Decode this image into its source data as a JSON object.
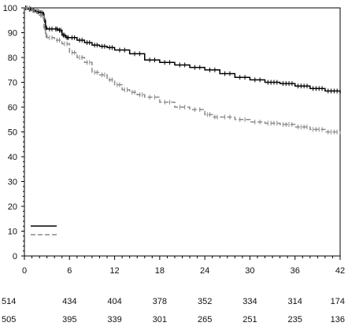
{
  "chart_data": {
    "type": "line",
    "title": "",
    "xlabel": "",
    "ylabel": "",
    "xlim": [
      0,
      42
    ],
    "ylim": [
      0,
      100
    ],
    "x_ticks": [
      0,
      6,
      12,
      18,
      24,
      30,
      36,
      42
    ],
    "y_ticks": [
      0,
      10,
      20,
      30,
      40,
      50,
      60,
      70,
      80,
      90,
      100
    ],
    "grid": false,
    "legend": {
      "placement": "bottom-left",
      "entries": [
        "",
        ""
      ]
    },
    "series": [
      {
        "color": "#000000",
        "dash": "solid",
        "points": [
          [
            0,
            100
          ],
          [
            0.5,
            99.5
          ],
          [
            1,
            99
          ],
          [
            1.5,
            98.5
          ],
          [
            2,
            98
          ],
          [
            2.5,
            97.5
          ],
          [
            2.6,
            95
          ],
          [
            2.8,
            92
          ],
          [
            3,
            91.5
          ],
          [
            4,
            91.5
          ],
          [
            4.5,
            91
          ],
          [
            5,
            89
          ],
          [
            5.5,
            88
          ],
          [
            6,
            88
          ],
          [
            7,
            87
          ],
          [
            8,
            86
          ],
          [
            9,
            85
          ],
          [
            10,
            84.5
          ],
          [
            11,
            84
          ],
          [
            12,
            83
          ],
          [
            14,
            81.5
          ],
          [
            16,
            79
          ],
          [
            18,
            78
          ],
          [
            20,
            77
          ],
          [
            22,
            76
          ],
          [
            24,
            75
          ],
          [
            26,
            73.5
          ],
          [
            28,
            72
          ],
          [
            30,
            71
          ],
          [
            32,
            70
          ],
          [
            34,
            69.5
          ],
          [
            36,
            68.5
          ],
          [
            38,
            67.5
          ],
          [
            40,
            66.5
          ],
          [
            42,
            65.5
          ]
        ]
      },
      {
        "color": "#8a8a8a",
        "dash": "dashed",
        "points": [
          [
            0,
            100
          ],
          [
            1,
            99
          ],
          [
            2,
            97
          ],
          [
            2.5,
            96
          ],
          [
            2.6,
            92
          ],
          [
            2.8,
            89
          ],
          [
            3,
            88
          ],
          [
            4,
            87
          ],
          [
            5,
            85.5
          ],
          [
            6,
            82
          ],
          [
            7,
            80
          ],
          [
            8,
            78
          ],
          [
            9,
            74
          ],
          [
            10,
            73
          ],
          [
            11,
            71
          ],
          [
            12,
            69
          ],
          [
            13,
            67
          ],
          [
            14,
            66
          ],
          [
            15,
            65
          ],
          [
            16,
            64
          ],
          [
            18,
            62
          ],
          [
            20,
            60
          ],
          [
            22,
            59
          ],
          [
            24,
            57
          ],
          [
            25,
            56
          ],
          [
            26,
            56
          ],
          [
            28,
            55
          ],
          [
            30,
            54
          ],
          [
            32,
            53.5
          ],
          [
            34,
            53
          ],
          [
            36,
            52
          ],
          [
            38,
            51
          ],
          [
            40,
            50
          ],
          [
            42,
            49
          ]
        ]
      }
    ],
    "at_risk": [
      {
        "x": [
          0,
          6,
          12,
          18,
          24,
          30,
          36,
          42
        ],
        "values": [
          514,
          434,
          404,
          378,
          352,
          334,
          314,
          174
        ]
      },
      {
        "x": [
          0,
          6,
          12,
          18,
          24,
          30,
          36,
          42
        ],
        "values": [
          505,
          395,
          339,
          301,
          265,
          251,
          235,
          136
        ]
      }
    ]
  }
}
